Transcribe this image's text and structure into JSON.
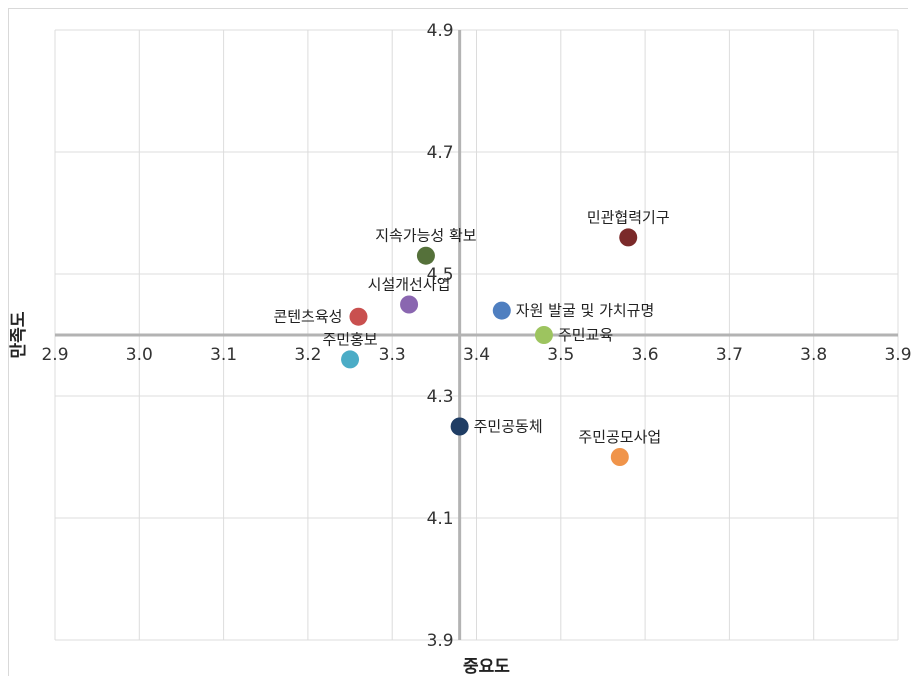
{
  "chart_data": {
    "type": "scatter",
    "xlabel": "중요도",
    "ylabel": "만족도",
    "xlim": [
      2.9,
      3.9
    ],
    "ylim": [
      3.9,
      4.9
    ],
    "x_ticks": [
      "2.9",
      "3.0",
      "3.1",
      "3.2",
      "3.3",
      "3.4",
      "3.5",
      "3.6",
      "3.7",
      "3.8",
      "3.9"
    ],
    "y_ticks": [
      "3.9",
      "4.1",
      "4.3",
      "4.5",
      "4.7",
      "4.9"
    ],
    "x_tick_values": [
      2.9,
      3.0,
      3.1,
      3.2,
      3.3,
      3.4,
      3.5,
      3.6,
      3.7,
      3.8,
      3.9
    ],
    "y_tick_values": [
      3.9,
      4.1,
      4.3,
      4.5,
      4.7,
      4.9
    ],
    "x_cross": 3.38,
    "y_cross": 4.4,
    "grid": true,
    "points": [
      {
        "label": "민관협력기구",
        "x": 3.58,
        "y": 4.56,
        "color": "#7b2a2a",
        "label_pos": "above"
      },
      {
        "label": "지속가능성 확보",
        "x": 3.34,
        "y": 4.53,
        "color": "#55713a",
        "label_pos": "above"
      },
      {
        "label": "시설개선사업",
        "x": 3.32,
        "y": 4.45,
        "color": "#8a66b0",
        "label_pos": "above"
      },
      {
        "label": "콘텐츠육성",
        "x": 3.26,
        "y": 4.43,
        "color": "#c9504f",
        "label_pos": "left"
      },
      {
        "label": "자원 발굴 및 가치규명",
        "x": 3.43,
        "y": 4.44,
        "color": "#4f7fc0",
        "label_pos": "right"
      },
      {
        "label": "주민교육",
        "x": 3.48,
        "y": 4.4,
        "color": "#9dc45f",
        "label_pos": "right"
      },
      {
        "label": "주민홍보",
        "x": 3.25,
        "y": 4.36,
        "color": "#4bacc6",
        "label_pos": "above"
      },
      {
        "label": "주민공동체",
        "x": 3.38,
        "y": 4.25,
        "color": "#1f3d64",
        "label_pos": "right"
      },
      {
        "label": "주민공모사업",
        "x": 3.57,
        "y": 4.2,
        "color": "#f0944a",
        "label_pos": "above"
      }
    ]
  }
}
